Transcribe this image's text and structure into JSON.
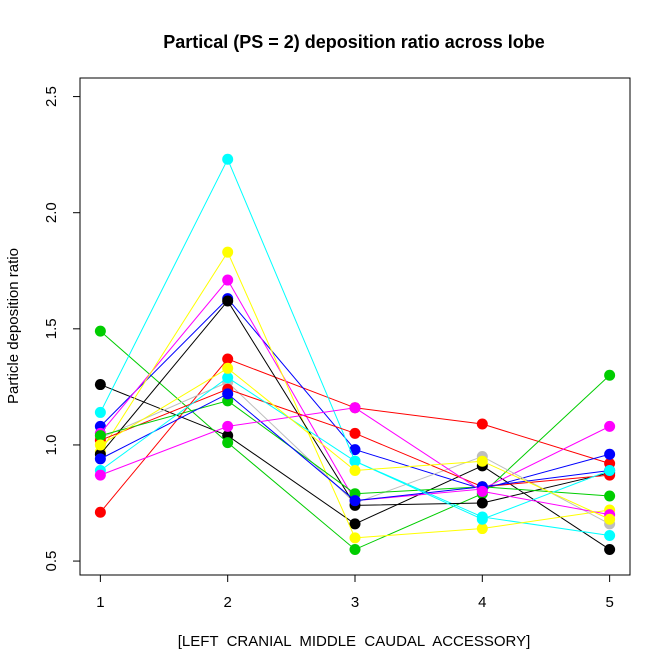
{
  "chart_data": {
    "type": "line",
    "title": "Partical (PS = 2) deposition ratio across lobe",
    "xlabel": "[LEFT  CRANIAL  MIDDLE  CAUDAL  ACCESSORY]",
    "ylabel": "Particle deposition ratio",
    "x": [
      1,
      2,
      3,
      4,
      5
    ],
    "x_ticks": [
      "1",
      "2",
      "3",
      "4",
      "5"
    ],
    "y_ticks": [
      "0.5",
      "1.0",
      "1.5",
      "2.0",
      "2.5"
    ],
    "xlim": [
      0.84,
      5.16
    ],
    "ylim": [
      0.44,
      2.58
    ],
    "grid": false,
    "legend": "none",
    "series": [
      {
        "color": "#000000",
        "values": [
          1.26,
          1.04,
          0.66,
          0.91,
          0.55
        ]
      },
      {
        "color": "#ff0000",
        "values": [
          0.71,
          1.37,
          1.16,
          1.09,
          0.92
        ]
      },
      {
        "color": "#00cd00",
        "values": [
          1.49,
          1.01,
          0.55,
          0.79,
          1.3
        ]
      },
      {
        "color": "#0000ff",
        "values": [
          1.08,
          1.63,
          0.98,
          0.81,
          0.96
        ]
      },
      {
        "color": "#00ffff",
        "values": [
          1.14,
          2.23,
          0.93,
          0.69,
          0.61
        ]
      },
      {
        "color": "#ff00ff",
        "values": [
          1.05,
          1.71,
          0.76,
          0.81,
          1.08
        ]
      },
      {
        "color": "#ffff00",
        "values": [
          0.97,
          1.83,
          0.6,
          0.64,
          0.72
        ]
      },
      {
        "color": "#bebebe",
        "values": [
          1.03,
          1.27,
          0.75,
          0.95,
          0.66
        ]
      },
      {
        "color": "#000000",
        "values": [
          0.96,
          1.62,
          0.74,
          0.75,
          0.88
        ]
      },
      {
        "color": "#ff0000",
        "values": [
          1.02,
          1.24,
          1.05,
          0.82,
          0.87
        ]
      },
      {
        "color": "#00cd00",
        "values": [
          1.04,
          1.19,
          0.79,
          0.82,
          0.78
        ]
      },
      {
        "color": "#0000ff",
        "values": [
          0.94,
          1.22,
          0.76,
          0.82,
          0.89
        ]
      },
      {
        "color": "#00ffff",
        "values": [
          0.89,
          1.29,
          0.93,
          0.68,
          0.89
        ]
      },
      {
        "color": "#ff00ff",
        "values": [
          0.87,
          1.08,
          1.16,
          0.8,
          0.7
        ]
      },
      {
        "color": "#ffff00",
        "values": [
          1.0,
          1.33,
          0.89,
          0.93,
          0.68
        ]
      }
    ]
  }
}
